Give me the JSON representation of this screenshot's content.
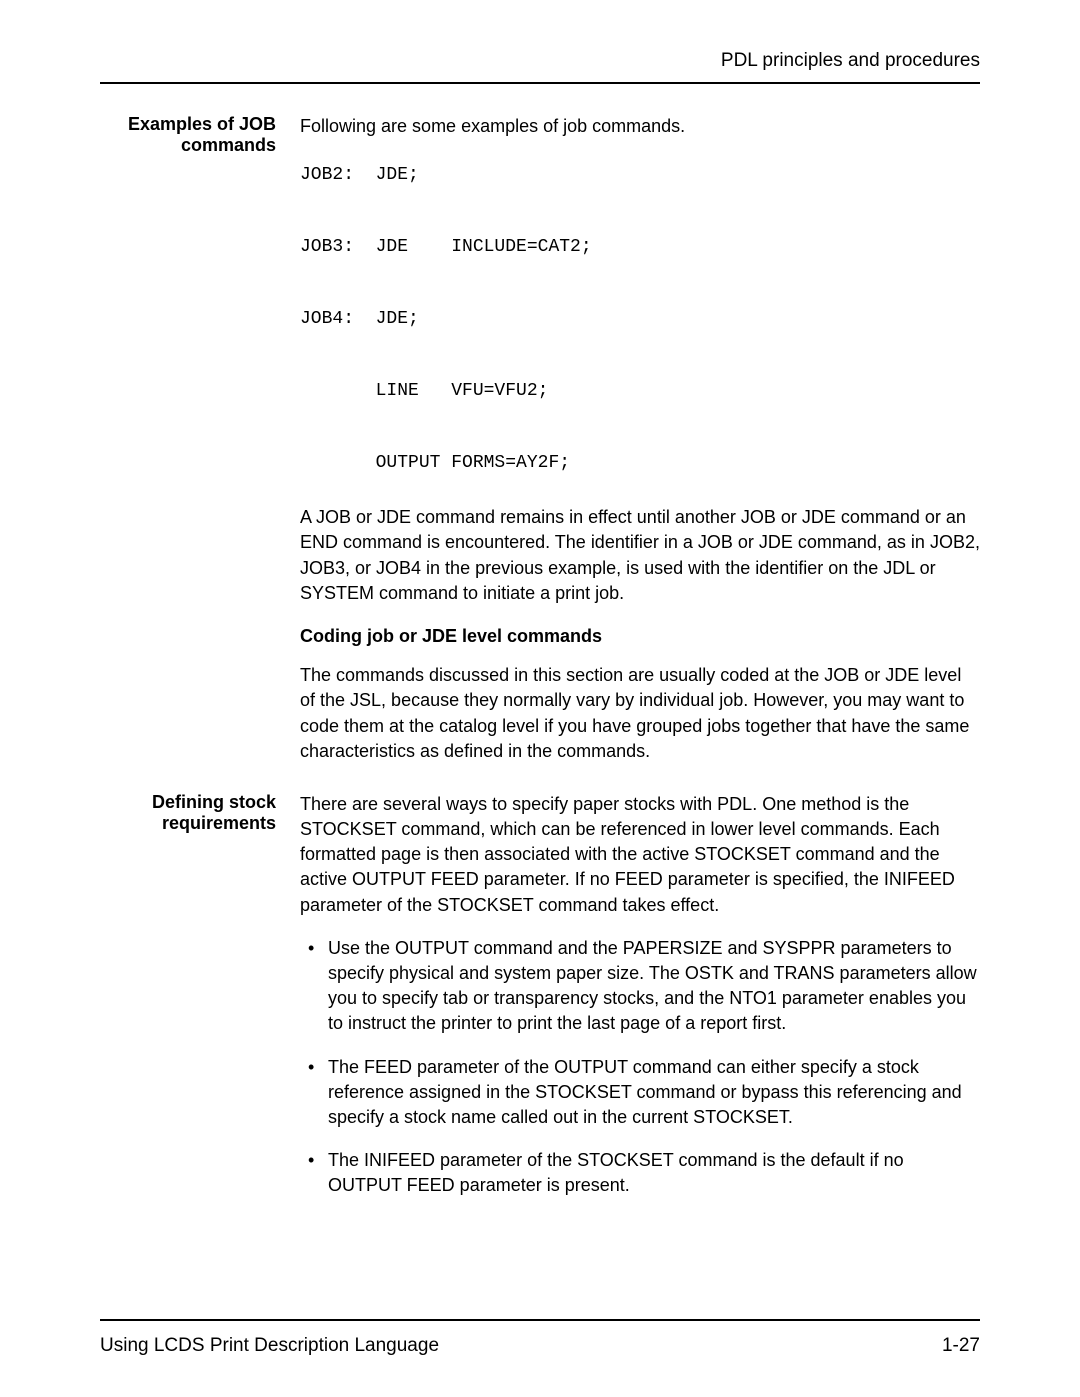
{
  "header": {
    "text": "PDL principles and procedures"
  },
  "section1": {
    "label": "Examples of JOB commands",
    "intro": "Following are some examples of job commands.",
    "code": "JOB2:  JDE;\n\nJOB3:  JDE    INCLUDE=CAT2;\n\nJOB4:  JDE;\n\n       LINE   VFU=VFU2;\n\n       OUTPUT FORMS=AY2F;",
    "para1": "A JOB or JDE command remains in effect until another JOB or JDE command or an END command is encountered. The identifier in a JOB or JDE command, as in JOB2, JOB3, or JOB4 in the previous example, is used with the identifier on the JDL or SYSTEM command to initiate a print job.",
    "subheading": "Coding job or JDE level commands",
    "para2": "The commands discussed in this section are usually coded at the JOB or JDE level of the JSL, because they normally vary by individual job. However, you may want to code them at the catalog level if you have grouped jobs together that have the same characteristics as defined in the commands."
  },
  "section2": {
    "label": "Defining stock requirements",
    "para1": "There are several ways to specify paper stocks with PDL. One method is the STOCKSET command, which can be referenced in lower level commands. Each formatted page is then associated with the active STOCKSET command and the active OUTPUT FEED parameter. If no FEED parameter is specified, the INIFEED parameter of the STOCKSET command takes effect.",
    "bullet1": "Use the OUTPUT command and the PAPERSIZE and SYSPPR parameters to specify physical and system paper size. The OSTK and TRANS parameters allow you to specify tab or transparency stocks, and the NTO1 parameter enables you to instruct the printer to print the last page of a report first.",
    "bullet2": "The FEED parameter of the OUTPUT command can either specify a stock reference assigned in the STOCKSET command or bypass this referencing and specify a stock name called out in the current STOCKSET.",
    "bullet3": "The INIFEED parameter of the STOCKSET command is the default if no OUTPUT FEED parameter is present."
  },
  "footer": {
    "left": "Using LCDS Print Description Language",
    "right": "1-27"
  }
}
